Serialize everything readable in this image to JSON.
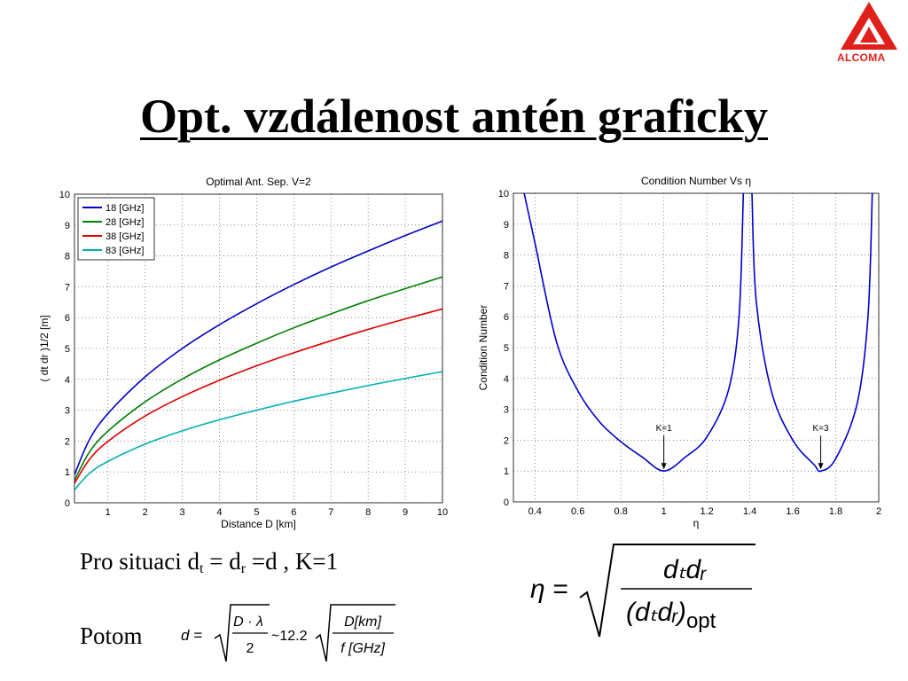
{
  "logo": {
    "text": "ALCOMA",
    "color": "#e0201a"
  },
  "slide": {
    "title": "Opt. vzdálenost antén graficky"
  },
  "text": {
    "line1_prefix": "Pro situaci d",
    "line1_sub1": "t",
    "line1_mid": " = d",
    "line1_sub2": "r",
    "line1_suffix": " =d , K=1",
    "line2": "Potom"
  },
  "formula_d": {
    "lhs": "d =",
    "num": "D · λ",
    "den": "2",
    "approx": "~12.2",
    "num2": "D[km]",
    "den2": "f [GHz]"
  },
  "formula_eta": {
    "lhs": "η =",
    "num": "dₜdᵣ",
    "den": "(dₜdᵣ)",
    "den_sub": "opt"
  },
  "chart_data": [
    {
      "type": "line",
      "title": "Optimal Ant. Sep. V=2",
      "xlabel": "Distance D [km]",
      "ylabel": "( d_t d_r )^1/2 [m]",
      "xlim": [
        0.1,
        10
      ],
      "ylim": [
        0,
        10
      ],
      "xticks": [
        1,
        2,
        3,
        4,
        5,
        6,
        7,
        8,
        9,
        10
      ],
      "yticks": [
        0,
        1,
        2,
        3,
        4,
        5,
        6,
        7,
        8,
        9,
        10
      ],
      "grid": true,
      "legend_position": "top-left",
      "x": [
        0.1,
        0.5,
        1,
        2,
        3,
        4,
        5,
        6,
        7,
        8,
        9,
        10
      ],
      "series": [
        {
          "name": "18 [GHz]",
          "color": "#0000cc",
          "values": [
            0.91,
            2.04,
            2.89,
            4.08,
            5.0,
            5.77,
            6.45,
            7.07,
            7.64,
            8.16,
            8.66,
            9.13
          ]
        },
        {
          "name": "28 [GHz]",
          "color": "#007f00",
          "values": [
            0.73,
            1.64,
            2.32,
            3.27,
            4.01,
            4.63,
            5.17,
            5.67,
            6.12,
            6.55,
            6.94,
            7.32
          ]
        },
        {
          "name": "38 [GHz]",
          "color": "#e00000",
          "values": [
            0.63,
            1.4,
            1.99,
            2.81,
            3.44,
            3.97,
            4.44,
            4.86,
            5.25,
            5.62,
            5.96,
            6.28
          ]
        },
        {
          "name": "83 [GHz]",
          "color": "#00b0b0",
          "values": [
            0.42,
            0.95,
            1.34,
            1.9,
            2.33,
            2.69,
            3.0,
            3.29,
            3.55,
            3.8,
            4.03,
            4.25
          ]
        }
      ]
    },
    {
      "type": "line",
      "title": "Condition Number Vs η",
      "xlabel": "η",
      "ylabel": "Condition Number",
      "xlim": [
        0.3,
        2
      ],
      "ylim": [
        0,
        10
      ],
      "xticks": [
        0.4,
        0.6,
        0.8,
        1,
        1.2,
        1.4,
        1.6,
        1.8,
        2
      ],
      "yticks": [
        0,
        1,
        2,
        3,
        4,
        5,
        6,
        7,
        8,
        9,
        10
      ],
      "grid": true,
      "annotations": [
        {
          "text": "K=1",
          "x": 1,
          "y": 1
        },
        {
          "text": "K=3",
          "x": 1.73,
          "y": 1
        }
      ],
      "series": [
        {
          "name": "",
          "color": "#0000cc",
          "segments": [
            {
              "x": [
                0.35,
                0.4,
                0.5,
                0.6,
                0.7,
                0.8,
                0.9,
                1.0,
                1.1,
                1.2,
                1.3,
                1.35,
                1.37
              ],
              "values": [
                10,
                8.4,
                5.2,
                3.6,
                2.6,
                1.95,
                1.45,
                1.0,
                1.45,
                2.1,
                3.6,
                6.0,
                10
              ]
            },
            {
              "x": [
                1.41,
                1.43,
                1.5,
                1.6,
                1.7,
                1.73,
                1.8,
                1.9,
                1.95,
                1.97
              ],
              "values": [
                10,
                6.5,
                3.6,
                2.0,
                1.2,
                1.0,
                1.4,
                3.2,
                6.0,
                10
              ]
            }
          ]
        }
      ]
    }
  ]
}
